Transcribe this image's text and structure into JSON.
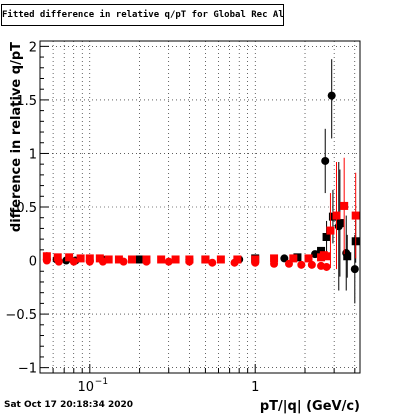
{
  "chart_data": {
    "type": "scatter",
    "title": "Fitted difference in relative q/pT for Global Rec All EtapT",
    "xlabel": "pT/|q| (GeV/c)",
    "ylabel": "difference in relative q/pT",
    "x_scale": "log",
    "xlim": [
      0.05,
      4.3
    ],
    "ylim": [
      -1.05,
      2.05
    ],
    "grid": true,
    "x_tick_labels": [
      {
        "value": 0.1,
        "base": "10",
        "exp": "−1"
      },
      {
        "value": 1,
        "text": "1"
      }
    ],
    "y_tick_labels": [
      {
        "value": 2,
        "text": "2"
      },
      {
        "value": 1.5,
        "text": "1.5"
      },
      {
        "value": 1,
        "text": "1"
      },
      {
        "value": 0.5,
        "text": "0.5"
      },
      {
        "value": 0,
        "text": "0"
      },
      {
        "value": -0.5,
        "text": "−0.5"
      },
      {
        "value": -1,
        "text": "−1"
      }
    ],
    "series": [
      {
        "marker": "circle",
        "color": "#000000",
        "bar_color": "#000000",
        "points": [
          {
            "x": 0.055,
            "y": 0.01
          },
          {
            "x": 0.063,
            "y": 0.01
          },
          {
            "x": 0.072,
            "y": 0.0
          },
          {
            "x": 0.082,
            "y": 0.0
          },
          {
            "x": 0.1,
            "y": 0.0
          },
          {
            "x": 0.12,
            "y": 0.01
          },
          {
            "x": 0.2,
            "y": 0.01
          },
          {
            "x": 0.4,
            "y": 0.01
          },
          {
            "x": 0.8,
            "y": 0.01
          },
          {
            "x": 1.5,
            "y": 0.02
          },
          {
            "x": 2.3,
            "y": 0.06
          },
          {
            "x": 2.65,
            "y": 0.93,
            "elo": 0.3,
            "ehi": 0.3
          },
          {
            "x": 2.9,
            "y": 1.54,
            "elo": 0.4,
            "ehi": 0.34
          },
          {
            "x": 3.2,
            "y": 0.32,
            "elo": 0.6,
            "ehi": 0.6
          },
          {
            "x": 3.55,
            "y": 0.07,
            "elo": 0.35,
            "ehi": 0.35
          },
          {
            "x": 4.0,
            "y": -0.08,
            "elo": 0.32,
            "ehi": 0.32
          }
        ]
      },
      {
        "marker": "square",
        "color": "#000000",
        "bar_color": "#000000",
        "points": [
          {
            "x": 0.2,
            "y": 0.01
          },
          {
            "x": 0.5,
            "y": 0.01
          },
          {
            "x": 1.0,
            "y": 0.02
          },
          {
            "x": 1.8,
            "y": 0.03
          },
          {
            "x": 2.5,
            "y": 0.09
          },
          {
            "x": 2.7,
            "y": 0.22,
            "elo": 0.15,
            "ehi": 0.15
          },
          {
            "x": 2.95,
            "y": 0.41,
            "elo": 0.25,
            "ehi": 0.25
          },
          {
            "x": 3.25,
            "y": 0.35,
            "elo": 0.5,
            "ehi": 0.5
          },
          {
            "x": 3.6,
            "y": 0.04,
            "elo": 0.2,
            "ehi": 0.2
          },
          {
            "x": 4.05,
            "y": 0.18,
            "elo": 0.2,
            "ehi": 0.2
          }
        ]
      },
      {
        "marker": "square",
        "color": "#ff0000",
        "bar_color": "#ff0000",
        "points": [
          {
            "x": 0.055,
            "y": 0.04,
            "elo": 0.04,
            "ehi": 0.04
          },
          {
            "x": 0.064,
            "y": 0.03,
            "elo": 0.03,
            "ehi": 0.03
          },
          {
            "x": 0.075,
            "y": 0.03,
            "elo": 0.03,
            "ehi": 0.03
          },
          {
            "x": 0.088,
            "y": 0.02,
            "elo": 0.03,
            "ehi": 0.03
          },
          {
            "x": 0.1,
            "y": 0.02,
            "elo": 0.02,
            "ehi": 0.02
          },
          {
            "x": 0.115,
            "y": 0.02,
            "elo": 0.02,
            "ehi": 0.02
          },
          {
            "x": 0.13,
            "y": 0.01
          },
          {
            "x": 0.15,
            "y": 0.01
          },
          {
            "x": 0.18,
            "y": 0.01
          },
          {
            "x": 0.22,
            "y": 0.01
          },
          {
            "x": 0.27,
            "y": 0.01
          },
          {
            "x": 0.33,
            "y": 0.01
          },
          {
            "x": 0.4,
            "y": 0.01
          },
          {
            "x": 0.5,
            "y": 0.01
          },
          {
            "x": 0.62,
            "y": 0.01
          },
          {
            "x": 0.78,
            "y": 0.01
          },
          {
            "x": 1.0,
            "y": 0.01
          },
          {
            "x": 1.3,
            "y": 0.02
          },
          {
            "x": 1.7,
            "y": 0.02
          },
          {
            "x": 2.1,
            "y": 0.02
          },
          {
            "x": 2.5,
            "y": 0.03
          },
          {
            "x": 2.6,
            "y": 0.05
          },
          {
            "x": 2.7,
            "y": 0.04
          },
          {
            "x": 2.85,
            "y": 0.28,
            "elo": 0.35,
            "ehi": 0.35
          },
          {
            "x": 3.1,
            "y": 0.42,
            "elo": 0.5,
            "ehi": 0.5
          },
          {
            "x": 3.45,
            "y": 0.51,
            "elo": 0.45,
            "ehi": 0.45
          },
          {
            "x": 4.05,
            "y": 0.42,
            "elo": 0.4,
            "ehi": 0.4
          }
        ]
      },
      {
        "marker": "circle",
        "color": "#ff0000",
        "bar_color": "#ff0000",
        "points": [
          {
            "x": 0.055,
            "y": 0.0
          },
          {
            "x": 0.065,
            "y": -0.01
          },
          {
            "x": 0.08,
            "y": -0.01
          },
          {
            "x": 0.1,
            "y": -0.01
          },
          {
            "x": 0.12,
            "y": -0.01
          },
          {
            "x": 0.16,
            "y": -0.01
          },
          {
            "x": 0.22,
            "y": -0.01
          },
          {
            "x": 0.3,
            "y": -0.01
          },
          {
            "x": 0.4,
            "y": -0.01
          },
          {
            "x": 0.55,
            "y": -0.02
          },
          {
            "x": 0.75,
            "y": -0.02
          },
          {
            "x": 1.0,
            "y": -0.02
          },
          {
            "x": 1.3,
            "y": -0.03
          },
          {
            "x": 1.6,
            "y": -0.03
          },
          {
            "x": 1.9,
            "y": -0.04
          },
          {
            "x": 2.2,
            "y": -0.04
          },
          {
            "x": 2.5,
            "y": -0.05
          },
          {
            "x": 2.7,
            "y": -0.06
          }
        ]
      }
    ]
  },
  "datestamp": "Sat Oct 17 20:18:34 2020"
}
